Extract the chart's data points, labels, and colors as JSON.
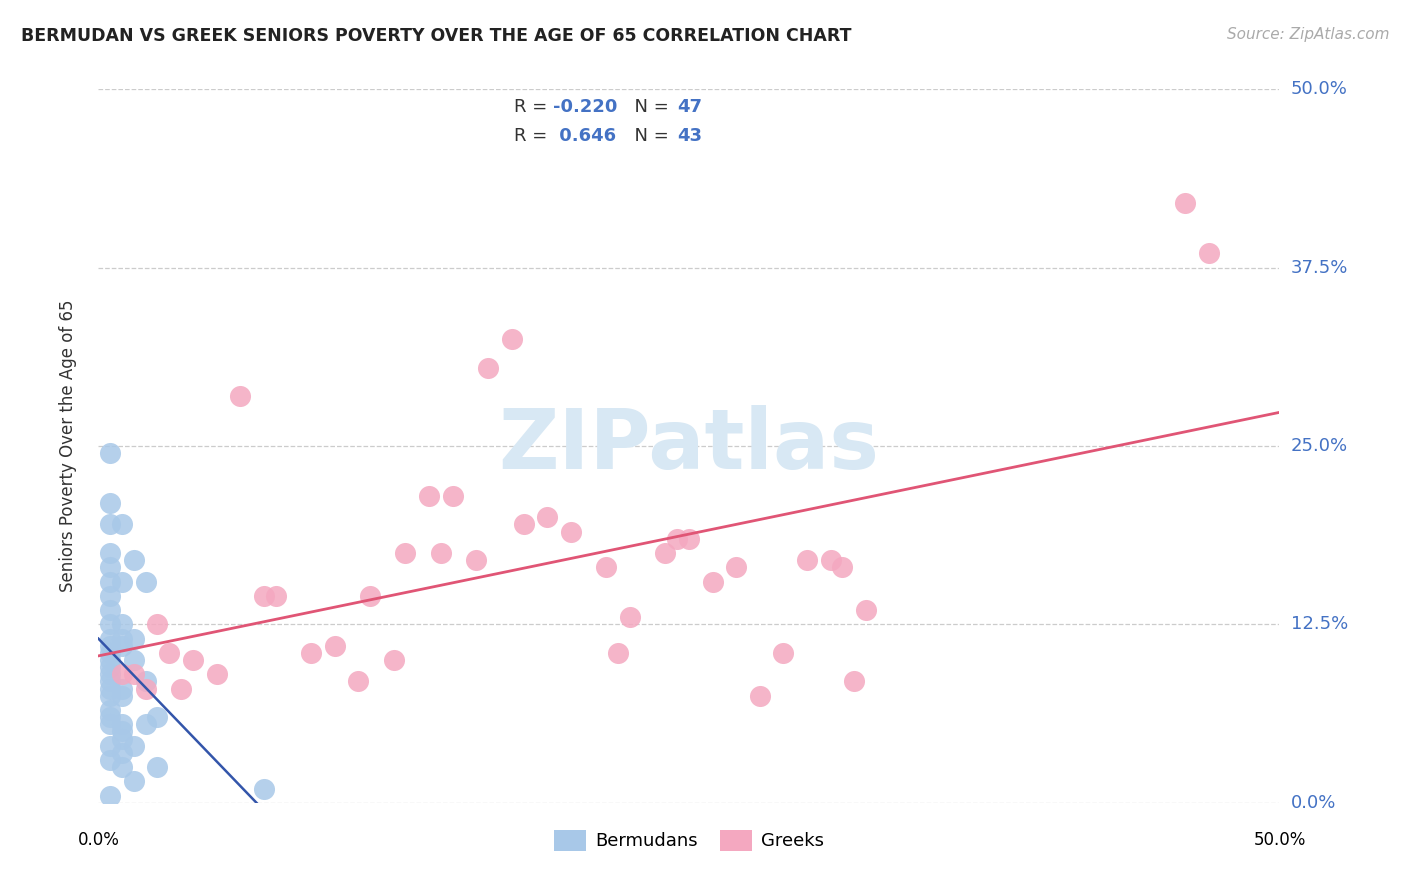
{
  "title": "BERMUDAN VS GREEK SENIORS POVERTY OVER THE AGE OF 65 CORRELATION CHART",
  "source": "Source: ZipAtlas.com",
  "ylabel": "Seniors Poverty Over the Age of 65",
  "xlim": [
    0.0,
    0.5
  ],
  "ylim": [
    0.0,
    0.5
  ],
  "ytick_positions": [
    0.0,
    0.125,
    0.25,
    0.375,
    0.5
  ],
  "ytick_labels_right": [
    "0.0%",
    "12.5%",
    "25.0%",
    "37.5%",
    "50.0%"
  ],
  "xtick_positions": [
    0.0,
    0.125,
    0.25,
    0.375,
    0.5
  ],
  "bermudan_R": -0.22,
  "bermudan_N": 47,
  "greek_R": 0.646,
  "greek_N": 43,
  "bermudan_color": "#a8c8e8",
  "greek_color": "#f4a8c0",
  "bermudan_line_color": "#3355aa",
  "greek_line_color": "#e05575",
  "watermark_color": "#d8e8f4",
  "background_color": "#ffffff",
  "grid_color": "#cccccc",
  "bermudan_x": [
    0.005,
    0.005,
    0.005,
    0.005,
    0.005,
    0.005,
    0.005,
    0.005,
    0.005,
    0.005,
    0.005,
    0.005,
    0.005,
    0.005,
    0.005,
    0.005,
    0.005,
    0.005,
    0.005,
    0.005,
    0.005,
    0.005,
    0.005,
    0.005,
    0.01,
    0.01,
    0.01,
    0.01,
    0.01,
    0.01,
    0.01,
    0.01,
    0.01,
    0.01,
    0.01,
    0.01,
    0.015,
    0.015,
    0.015,
    0.015,
    0.015,
    0.02,
    0.02,
    0.02,
    0.025,
    0.025,
    0.07
  ],
  "bermudan_y": [
    0.245,
    0.21,
    0.195,
    0.175,
    0.165,
    0.155,
    0.145,
    0.135,
    0.125,
    0.115,
    0.11,
    0.105,
    0.1,
    0.095,
    0.09,
    0.085,
    0.08,
    0.075,
    0.065,
    0.06,
    0.055,
    0.04,
    0.03,
    0.005,
    0.195,
    0.155,
    0.125,
    0.115,
    0.11,
    0.08,
    0.075,
    0.055,
    0.05,
    0.045,
    0.035,
    0.025,
    0.17,
    0.115,
    0.1,
    0.04,
    0.015,
    0.155,
    0.085,
    0.055,
    0.06,
    0.025,
    0.01
  ],
  "greek_x": [
    0.01,
    0.015,
    0.02,
    0.025,
    0.03,
    0.035,
    0.04,
    0.05,
    0.06,
    0.07,
    0.075,
    0.09,
    0.1,
    0.11,
    0.115,
    0.125,
    0.13,
    0.14,
    0.145,
    0.15,
    0.16,
    0.165,
    0.175,
    0.18,
    0.19,
    0.2,
    0.215,
    0.22,
    0.225,
    0.24,
    0.245,
    0.25,
    0.26,
    0.27,
    0.28,
    0.29,
    0.3,
    0.31,
    0.315,
    0.32,
    0.325,
    0.46,
    0.47
  ],
  "greek_y": [
    0.09,
    0.09,
    0.08,
    0.125,
    0.105,
    0.08,
    0.1,
    0.09,
    0.285,
    0.145,
    0.145,
    0.105,
    0.11,
    0.085,
    0.145,
    0.1,
    0.175,
    0.215,
    0.175,
    0.215,
    0.17,
    0.305,
    0.325,
    0.195,
    0.2,
    0.19,
    0.165,
    0.105,
    0.13,
    0.175,
    0.185,
    0.185,
    0.155,
    0.165,
    0.075,
    0.105,
    0.17,
    0.17,
    0.165,
    0.085,
    0.135,
    0.42,
    0.385
  ]
}
